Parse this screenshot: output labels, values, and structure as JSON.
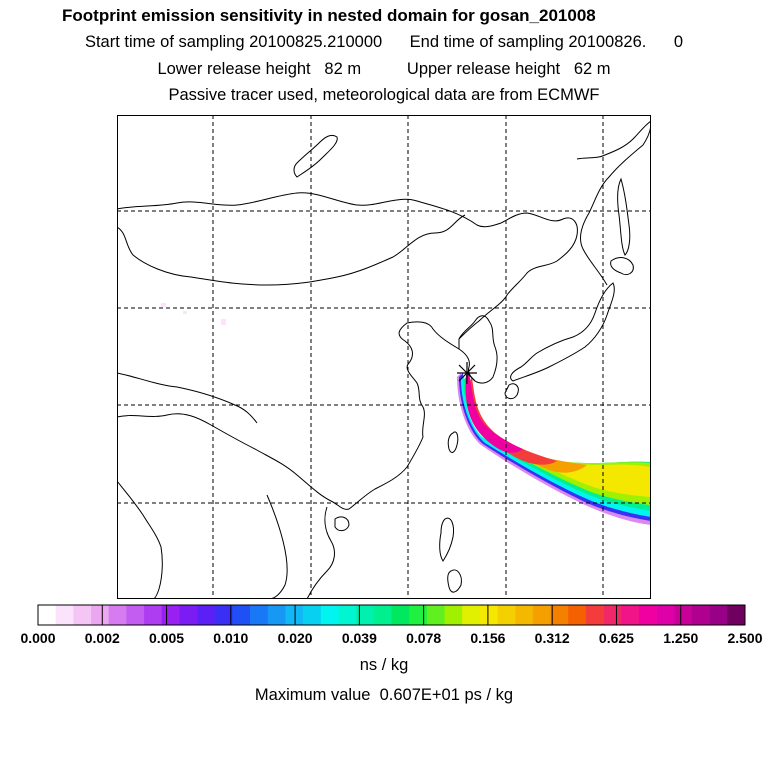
{
  "header": {
    "title": "Footprint emission sensitivity in nested domain for gosan_201008",
    "line2": "Start time of sampling 20100825.210000      End time of sampling 20100826.      0",
    "line3": "Lower release height   82 m          Upper release height   62 m",
    "line4": "Passive tracer used, meteorological data are from ECMWF"
  },
  "colorbar": {
    "labels": [
      "0.000",
      "0.002",
      "0.005",
      "0.010",
      "0.020",
      "0.039",
      "0.078",
      "0.156",
      "0.312",
      "0.625",
      "1.250",
      "2.500"
    ],
    "colors": [
      "#ffffff",
      "#fbe3fb",
      "#f5c6f5",
      "#eba8f0",
      "#d77cf0",
      "#c35cf0",
      "#ae3cf0",
      "#9a20f2",
      "#7c1cf5",
      "#5a20f5",
      "#3a30f5",
      "#2050f5",
      "#1878f5",
      "#1898f5",
      "#10b8f5",
      "#08d0f0",
      "#00f5f0",
      "#00f5d0",
      "#00f0b0",
      "#00f090",
      "#00e860",
      "#20f040",
      "#60f020",
      "#a0f000",
      "#e0f000",
      "#f5e800",
      "#f5d000",
      "#f5b800",
      "#f5a000",
      "#f58000",
      "#f56000",
      "#f53c3c",
      "#f02868",
      "#f01488",
      "#f000a0",
      "#e000a8",
      "#c80098",
      "#b00090",
      "#980088",
      "#700060"
    ],
    "unit": "ns / kg"
  },
  "max_value": "Maximum value  0.607E+01 ps / kg",
  "map": {
    "release_marker": "receptor-star-icon",
    "plume_colors": [
      "#f000a0",
      "#f53c3c",
      "#f5a000",
      "#f5e800",
      "#a0f000",
      "#00f090",
      "#00f5f0",
      "#3a30f5",
      "#d77cf0"
    ]
  }
}
